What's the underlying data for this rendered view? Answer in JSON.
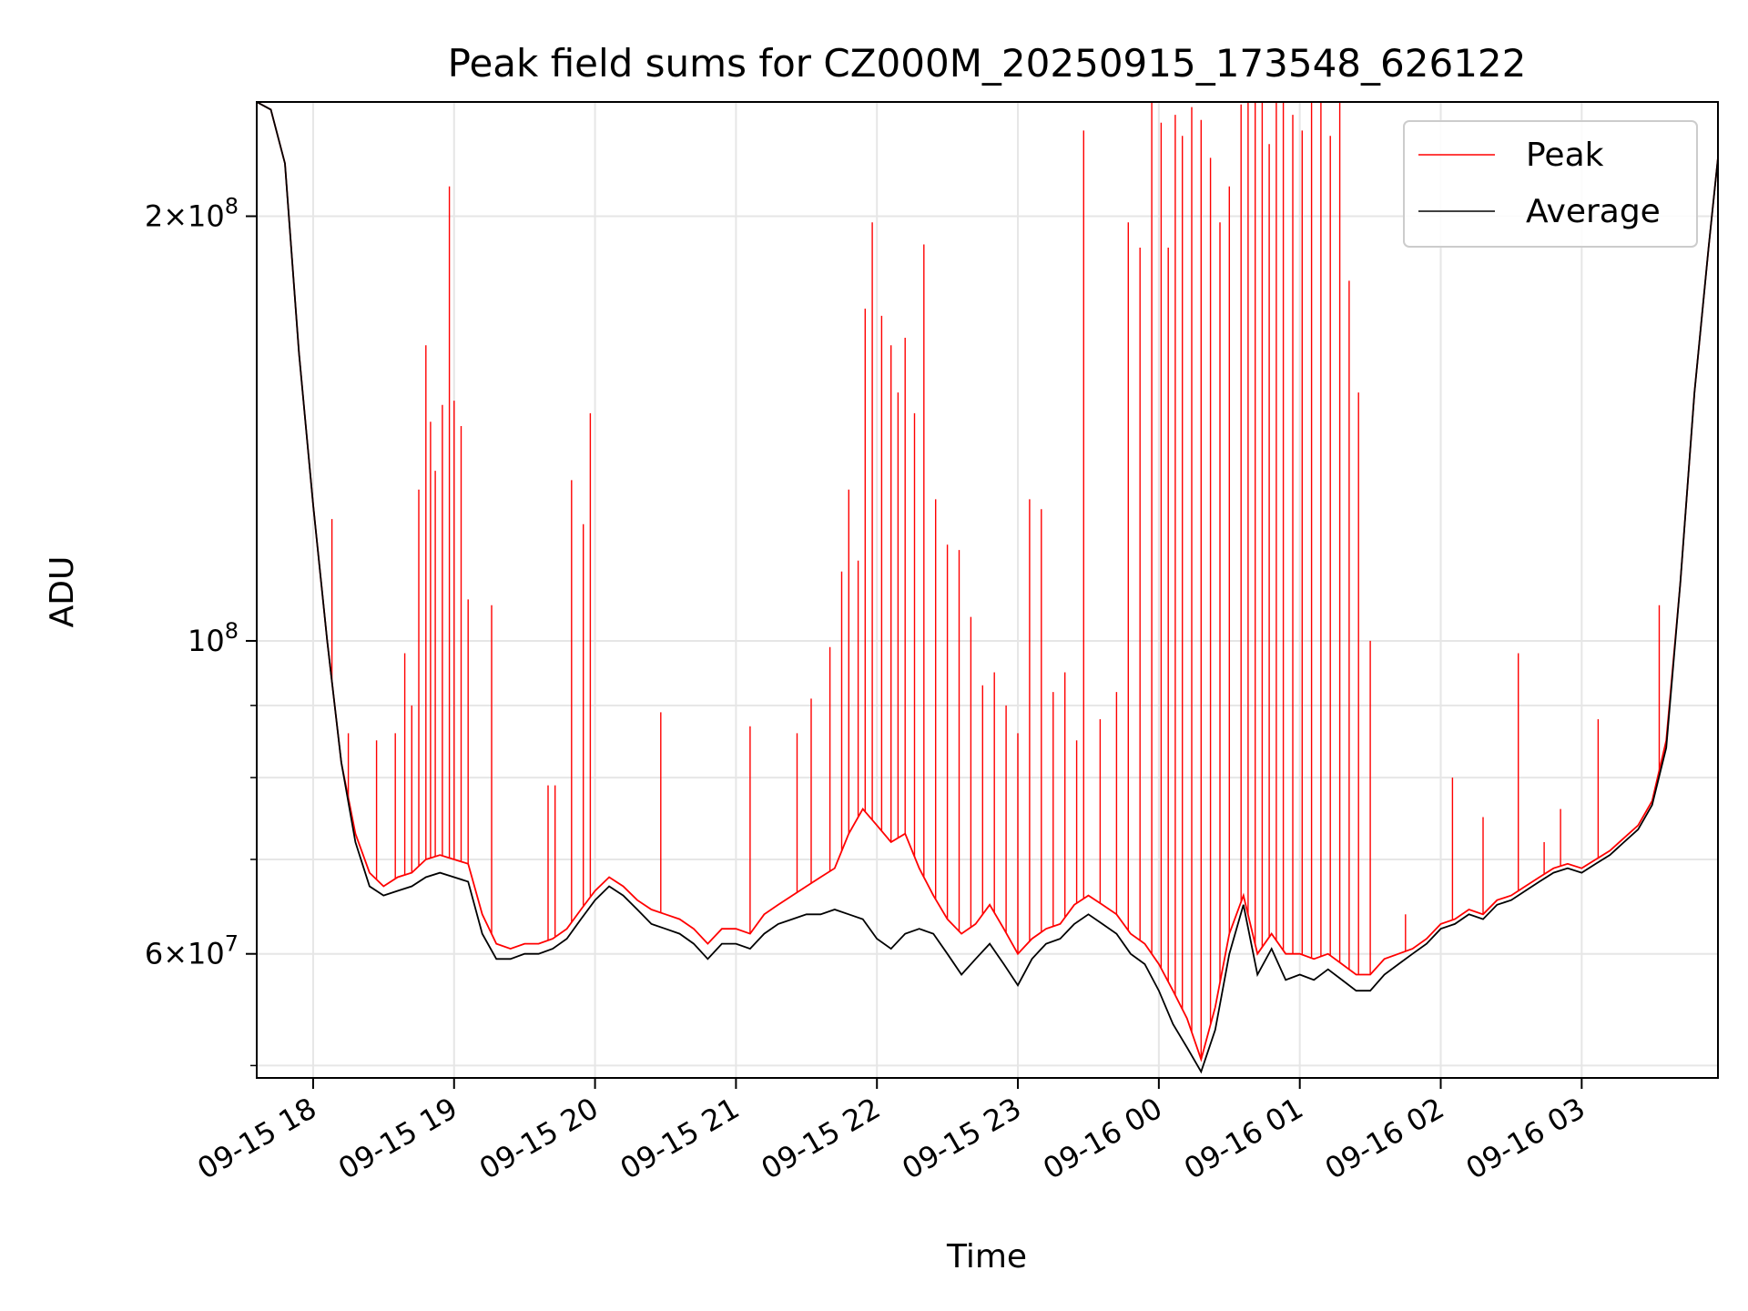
{
  "chart_data": {
    "type": "line",
    "title": "Peak field sums for CZ000M_20250915_173548_626122",
    "xlabel": "Time",
    "ylabel": "ADU",
    "yscale": "log",
    "grid": true,
    "legend_position": "top-right",
    "xlim": [
      "2025-09-15 17:36",
      "2025-09-16 03:58"
    ],
    "ylim": [
      49000000,
      241000000
    ],
    "xticks": [
      {
        "value": "2025-09-15 18:00",
        "label": "09-15 18"
      },
      {
        "value": "2025-09-15 19:00",
        "label": "09-15 19"
      },
      {
        "value": "2025-09-15 20:00",
        "label": "09-15 20"
      },
      {
        "value": "2025-09-15 21:00",
        "label": "09-15 21"
      },
      {
        "value": "2025-09-15 22:00",
        "label": "09-15 22"
      },
      {
        "value": "2025-09-15 23:00",
        "label": "09-15 23"
      },
      {
        "value": "2025-09-16 00:00",
        "label": "09-16 00"
      },
      {
        "value": "2025-09-16 01:00",
        "label": "09-16 01"
      },
      {
        "value": "2025-09-16 02:00",
        "label": "09-16 02"
      },
      {
        "value": "2025-09-16 03:00",
        "label": "09-16 03"
      }
    ],
    "yticks_major": [
      {
        "value": 60000000,
        "base": "6",
        "exp": "7"
      },
      {
        "value": 100000000,
        "base": "",
        "exp": "8"
      },
      {
        "value": 200000000,
        "base": "2",
        "exp": "8"
      }
    ],
    "yticks_minor": [
      50000000,
      70000000,
      80000000,
      90000000
    ],
    "series": [
      {
        "name": "Peak",
        "color": "#ff0000",
        "baseline_x": [
          "2025-09-15 17:36",
          "2025-09-15 17:42",
          "2025-09-15 17:48",
          "2025-09-15 17:54",
          "2025-09-15 18:00",
          "2025-09-15 18:06",
          "2025-09-15 18:12",
          "2025-09-15 18:18",
          "2025-09-15 18:24",
          "2025-09-15 18:30",
          "2025-09-15 18:36",
          "2025-09-15 18:42",
          "2025-09-15 18:48",
          "2025-09-15 18:54",
          "2025-09-15 19:00",
          "2025-09-15 19:06",
          "2025-09-15 19:12",
          "2025-09-15 19:18",
          "2025-09-15 19:24",
          "2025-09-15 19:30",
          "2025-09-15 19:36",
          "2025-09-15 19:42",
          "2025-09-15 19:48",
          "2025-09-15 19:54",
          "2025-09-15 20:00",
          "2025-09-15 20:06",
          "2025-09-15 20:12",
          "2025-09-15 20:18",
          "2025-09-15 20:24",
          "2025-09-15 20:30",
          "2025-09-15 20:36",
          "2025-09-15 20:42",
          "2025-09-15 20:48",
          "2025-09-15 20:54",
          "2025-09-15 21:00",
          "2025-09-15 21:06",
          "2025-09-15 21:12",
          "2025-09-15 21:18",
          "2025-09-15 21:24",
          "2025-09-15 21:30",
          "2025-09-15 21:36",
          "2025-09-15 21:42",
          "2025-09-15 21:48",
          "2025-09-15 21:54",
          "2025-09-15 22:00",
          "2025-09-15 22:06",
          "2025-09-15 22:12",
          "2025-09-15 22:18",
          "2025-09-15 22:24",
          "2025-09-15 22:30",
          "2025-09-15 22:36",
          "2025-09-15 22:42",
          "2025-09-15 22:48",
          "2025-09-15 22:54",
          "2025-09-15 23:00",
          "2025-09-15 23:06",
          "2025-09-15 23:12",
          "2025-09-15 23:18",
          "2025-09-15 23:24",
          "2025-09-15 23:30",
          "2025-09-15 23:36",
          "2025-09-15 23:42",
          "2025-09-15 23:48",
          "2025-09-15 23:54",
          "2025-09-16 00:00",
          "2025-09-16 00:06",
          "2025-09-16 00:12",
          "2025-09-16 00:18",
          "2025-09-16 00:24",
          "2025-09-16 00:30",
          "2025-09-16 00:36",
          "2025-09-16 00:42",
          "2025-09-16 00:48",
          "2025-09-16 00:54",
          "2025-09-16 01:00",
          "2025-09-16 01:06",
          "2025-09-16 01:12",
          "2025-09-16 01:18",
          "2025-09-16 01:24",
          "2025-09-16 01:30",
          "2025-09-16 01:36",
          "2025-09-16 01:42",
          "2025-09-16 01:48",
          "2025-09-16 01:54",
          "2025-09-16 02:00",
          "2025-09-16 02:06",
          "2025-09-16 02:12",
          "2025-09-16 02:18",
          "2025-09-16 02:24",
          "2025-09-16 02:30",
          "2025-09-16 02:36",
          "2025-09-16 02:42",
          "2025-09-16 02:48",
          "2025-09-16 02:54",
          "2025-09-16 03:00",
          "2025-09-16 03:06",
          "2025-09-16 03:12",
          "2025-09-16 03:18",
          "2025-09-16 03:24",
          "2025-09-16 03:30",
          "2025-09-16 03:36",
          "2025-09-16 03:42",
          "2025-09-16 03:48",
          "2025-09-16 03:54",
          "2025-09-16 03:58"
        ],
        "baseline_y": [
          241000000,
          238000000,
          218000000,
          160000000,
          125000000,
          100000000,
          82000000,
          73000000,
          68500000,
          67000000,
          68000000,
          68500000,
          70000000,
          70500000,
          70000000,
          69500000,
          64000000,
          61000000,
          60500000,
          61000000,
          61000000,
          61500000,
          62500000,
          64500000,
          66500000,
          68000000,
          67000000,
          65500000,
          64500000,
          64000000,
          63500000,
          62500000,
          61000000,
          62500000,
          62500000,
          62000000,
          64000000,
          65000000,
          66000000,
          67000000,
          68000000,
          69000000,
          73000000,
          76000000,
          74000000,
          72000000,
          73000000,
          69000000,
          66000000,
          63500000,
          62000000,
          63000000,
          65000000,
          62500000,
          60000000,
          61500000,
          62500000,
          63000000,
          65000000,
          66000000,
          65000000,
          64000000,
          62000000,
          61000000,
          59000000,
          56500000,
          54000000,
          50500000,
          55000000,
          62000000,
          66000000,
          60000000,
          62000000,
          60000000,
          60000000,
          59500000,
          60000000,
          59000000,
          58000000,
          58000000,
          59500000,
          60000000,
          60500000,
          61500000,
          63000000,
          63500000,
          64500000,
          64000000,
          65500000,
          66000000,
          67000000,
          68000000,
          69000000,
          69500000,
          69000000,
          70000000,
          71000000,
          72500000,
          74000000,
          77000000,
          85000000,
          110000000,
          150000000,
          190000000,
          220000000
        ],
        "spikes": [
          [
            "2025-09-15 18:08",
            122000000
          ],
          [
            "2025-09-15 18:15",
            86000000
          ],
          [
            "2025-09-15 18:27",
            85000000
          ],
          [
            "2025-09-15 18:35",
            86000000
          ],
          [
            "2025-09-15 18:39",
            98000000
          ],
          [
            "2025-09-15 18:42",
            90000000
          ],
          [
            "2025-09-15 18:45",
            128000000
          ],
          [
            "2025-09-15 18:48",
            162000000
          ],
          [
            "2025-09-15 18:50",
            143000000
          ],
          [
            "2025-09-15 18:52",
            132000000
          ],
          [
            "2025-09-15 18:55",
            147000000
          ],
          [
            "2025-09-15 18:58",
            210000000
          ],
          [
            "2025-09-15 19:00",
            148000000
          ],
          [
            "2025-09-15 19:03",
            142000000
          ],
          [
            "2025-09-15 19:06",
            107000000
          ],
          [
            "2025-09-15 19:16",
            106000000
          ],
          [
            "2025-09-15 19:40",
            79000000
          ],
          [
            "2025-09-15 19:43",
            79000000
          ],
          [
            "2025-09-15 19:50",
            130000000
          ],
          [
            "2025-09-15 19:55",
            121000000
          ],
          [
            "2025-09-15 19:58",
            145000000
          ],
          [
            "2025-09-15 20:28",
            89000000
          ],
          [
            "2025-09-15 21:06",
            87000000
          ],
          [
            "2025-09-15 21:26",
            86000000
          ],
          [
            "2025-09-15 21:32",
            91000000
          ],
          [
            "2025-09-15 21:40",
            99000000
          ],
          [
            "2025-09-15 21:45",
            112000000
          ],
          [
            "2025-09-15 21:48",
            128000000
          ],
          [
            "2025-09-15 21:52",
            114000000
          ],
          [
            "2025-09-15 21:55",
            172000000
          ],
          [
            "2025-09-15 21:58",
            198000000
          ],
          [
            "2025-09-15 22:02",
            170000000
          ],
          [
            "2025-09-15 22:06",
            162000000
          ],
          [
            "2025-09-15 22:09",
            150000000
          ],
          [
            "2025-09-15 22:12",
            164000000
          ],
          [
            "2025-09-15 22:16",
            145000000
          ],
          [
            "2025-09-15 22:20",
            191000000
          ],
          [
            "2025-09-15 22:25",
            126000000
          ],
          [
            "2025-09-15 22:30",
            117000000
          ],
          [
            "2025-09-15 22:35",
            116000000
          ],
          [
            "2025-09-15 22:40",
            104000000
          ],
          [
            "2025-09-15 22:45",
            93000000
          ],
          [
            "2025-09-15 22:50",
            95000000
          ],
          [
            "2025-09-15 22:55",
            90000000
          ],
          [
            "2025-09-15 23:00",
            86000000
          ],
          [
            "2025-09-15 23:05",
            126000000
          ],
          [
            "2025-09-15 23:10",
            124000000
          ],
          [
            "2025-09-15 23:15",
            92000000
          ],
          [
            "2025-09-15 23:20",
            95000000
          ],
          [
            "2025-09-15 23:25",
            85000000
          ],
          [
            "2025-09-15 23:28",
            230000000
          ],
          [
            "2025-09-15 23:35",
            88000000
          ],
          [
            "2025-09-15 23:42",
            92000000
          ],
          [
            "2025-09-15 23:47",
            198000000
          ],
          [
            "2025-09-15 23:52",
            190000000
          ],
          [
            "2025-09-15 23:57",
            241000000
          ],
          [
            "2025-09-16 00:01",
            233000000
          ],
          [
            "2025-09-16 00:04",
            190000000
          ],
          [
            "2025-09-16 00:07",
            236000000
          ],
          [
            "2025-09-16 00:10",
            228000000
          ],
          [
            "2025-09-16 00:14",
            239000000
          ],
          [
            "2025-09-16 00:18",
            234000000
          ],
          [
            "2025-09-16 00:22",
            220000000
          ],
          [
            "2025-09-16 00:26",
            198000000
          ],
          [
            "2025-09-16 00:30",
            210000000
          ],
          [
            "2025-09-16 00:35",
            240000000
          ],
          [
            "2025-09-16 00:38",
            241000000
          ],
          [
            "2025-09-16 00:41",
            241000000
          ],
          [
            "2025-09-16 00:44",
            241000000
          ],
          [
            "2025-09-16 00:47",
            225000000
          ],
          [
            "2025-09-16 00:50",
            241000000
          ],
          [
            "2025-09-16 00:53",
            241000000
          ],
          [
            "2025-09-16 00:57",
            236000000
          ],
          [
            "2025-09-16 01:01",
            230000000
          ],
          [
            "2025-09-16 01:05",
            241000000
          ],
          [
            "2025-09-16 01:09",
            241000000
          ],
          [
            "2025-09-16 01:13",
            228000000
          ],
          [
            "2025-09-16 01:17",
            241000000
          ],
          [
            "2025-09-16 01:21",
            180000000
          ],
          [
            "2025-09-16 01:25",
            150000000
          ],
          [
            "2025-09-16 01:30",
            100000000
          ],
          [
            "2025-09-16 01:45",
            64000000
          ],
          [
            "2025-09-16 02:05",
            80000000
          ],
          [
            "2025-09-16 02:18",
            75000000
          ],
          [
            "2025-09-16 02:33",
            98000000
          ],
          [
            "2025-09-16 02:44",
            72000000
          ],
          [
            "2025-09-16 02:51",
            76000000
          ],
          [
            "2025-09-16 03:07",
            88000000
          ],
          [
            "2025-09-16 03:33",
            106000000
          ]
        ]
      },
      {
        "name": "Average",
        "color": "#000000",
        "x": [
          "2025-09-15 17:36",
          "2025-09-15 17:42",
          "2025-09-15 17:48",
          "2025-09-15 17:54",
          "2025-09-15 18:00",
          "2025-09-15 18:06",
          "2025-09-15 18:12",
          "2025-09-15 18:18",
          "2025-09-15 18:24",
          "2025-09-15 18:30",
          "2025-09-15 18:36",
          "2025-09-15 18:42",
          "2025-09-15 18:48",
          "2025-09-15 18:54",
          "2025-09-15 19:00",
          "2025-09-15 19:06",
          "2025-09-15 19:12",
          "2025-09-15 19:18",
          "2025-09-15 19:24",
          "2025-09-15 19:30",
          "2025-09-15 19:36",
          "2025-09-15 19:42",
          "2025-09-15 19:48",
          "2025-09-15 19:54",
          "2025-09-15 20:00",
          "2025-09-15 20:06",
          "2025-09-15 20:12",
          "2025-09-15 20:18",
          "2025-09-15 20:24",
          "2025-09-15 20:30",
          "2025-09-15 20:36",
          "2025-09-15 20:42",
          "2025-09-15 20:48",
          "2025-09-15 20:54",
          "2025-09-15 21:00",
          "2025-09-15 21:06",
          "2025-09-15 21:12",
          "2025-09-15 21:18",
          "2025-09-15 21:24",
          "2025-09-15 21:30",
          "2025-09-15 21:36",
          "2025-09-15 21:42",
          "2025-09-15 21:48",
          "2025-09-15 21:54",
          "2025-09-15 22:00",
          "2025-09-15 22:06",
          "2025-09-15 22:12",
          "2025-09-15 22:18",
          "2025-09-15 22:24",
          "2025-09-15 22:30",
          "2025-09-15 22:36",
          "2025-09-15 22:42",
          "2025-09-15 22:48",
          "2025-09-15 22:54",
          "2025-09-15 23:00",
          "2025-09-15 23:06",
          "2025-09-15 23:12",
          "2025-09-15 23:18",
          "2025-09-15 23:24",
          "2025-09-15 23:30",
          "2025-09-15 23:36",
          "2025-09-15 23:42",
          "2025-09-15 23:48",
          "2025-09-15 23:54",
          "2025-09-16 00:00",
          "2025-09-16 00:06",
          "2025-09-16 00:12",
          "2025-09-16 00:18",
          "2025-09-16 00:24",
          "2025-09-16 00:30",
          "2025-09-16 00:36",
          "2025-09-16 00:42",
          "2025-09-16 00:48",
          "2025-09-16 00:54",
          "2025-09-16 01:00",
          "2025-09-16 01:06",
          "2025-09-16 01:12",
          "2025-09-16 01:18",
          "2025-09-16 01:24",
          "2025-09-16 01:30",
          "2025-09-16 01:36",
          "2025-09-16 01:42",
          "2025-09-16 01:48",
          "2025-09-16 01:54",
          "2025-09-16 02:00",
          "2025-09-16 02:06",
          "2025-09-16 02:12",
          "2025-09-16 02:18",
          "2025-09-16 02:24",
          "2025-09-16 02:30",
          "2025-09-16 02:36",
          "2025-09-16 02:42",
          "2025-09-16 02:48",
          "2025-09-16 02:54",
          "2025-09-16 03:00",
          "2025-09-16 03:06",
          "2025-09-16 03:12",
          "2025-09-16 03:18",
          "2025-09-16 03:24",
          "2025-09-16 03:30",
          "2025-09-16 03:36",
          "2025-09-16 03:42",
          "2025-09-16 03:48",
          "2025-09-16 03:54",
          "2025-09-16 03:58"
        ],
        "y": [
          241000000,
          238000000,
          218000000,
          160000000,
          125000000,
          100000000,
          82000000,
          72000000,
          67000000,
          66000000,
          66500000,
          67000000,
          68000000,
          68500000,
          68000000,
          67500000,
          62000000,
          59500000,
          59500000,
          60000000,
          60000000,
          60500000,
          61500000,
          63500000,
          65500000,
          67000000,
          66000000,
          64500000,
          63000000,
          62500000,
          62000000,
          61000000,
          59500000,
          61000000,
          61000000,
          60500000,
          62000000,
          63000000,
          63500000,
          64000000,
          64000000,
          64500000,
          64000000,
          63500000,
          61500000,
          60500000,
          62000000,
          62500000,
          62000000,
          60000000,
          58000000,
          59500000,
          61000000,
          59000000,
          57000000,
          59500000,
          61000000,
          61500000,
          63000000,
          64000000,
          63000000,
          62000000,
          60000000,
          59000000,
          56500000,
          53500000,
          51500000,
          49500000,
          53000000,
          60000000,
          65000000,
          58000000,
          60500000,
          57500000,
          58000000,
          57500000,
          58500000,
          57500000,
          56500000,
          56500000,
          58000000,
          59000000,
          60000000,
          61000000,
          62500000,
          63000000,
          64000000,
          63500000,
          65000000,
          65500000,
          66500000,
          67500000,
          68500000,
          69000000,
          68500000,
          69500000,
          70500000,
          72000000,
          73500000,
          76500000,
          84000000,
          110000000,
          150000000,
          190000000,
          220000000
        ]
      }
    ]
  }
}
